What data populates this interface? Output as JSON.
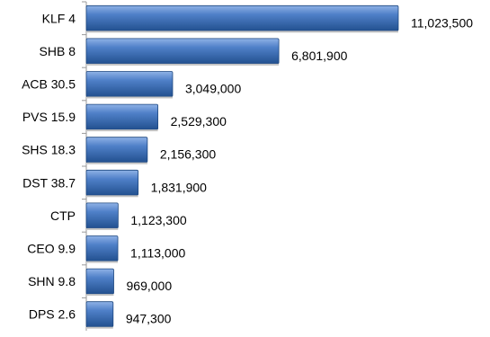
{
  "chart_data": {
    "type": "bar",
    "orientation": "horizontal",
    "categories": [
      "KLF 4",
      "SHB 8",
      "ACB 30.5",
      "PVS 15.9",
      "SHS 18.3",
      "DST 38.7",
      "CTP",
      "CEO 9.9",
      "SHN 9.8",
      "DPS 2.6"
    ],
    "values": [
      11023500,
      6801900,
      3049000,
      2529300,
      2156300,
      1831900,
      1123300,
      1113000,
      969000,
      947300
    ],
    "value_labels": [
      "11,023,500",
      "6,801,900",
      "3,049,000",
      "2,529,300",
      "2,156,300",
      "1,831,900",
      "1,123,300",
      "1,113,000",
      "969,000",
      "947,300"
    ],
    "title": "",
    "xlabel": "",
    "ylabel": "",
    "grid": false,
    "legend": "none",
    "bar_color": "#2e5fa8",
    "bar_highlight_color": "#7aa2dc"
  }
}
